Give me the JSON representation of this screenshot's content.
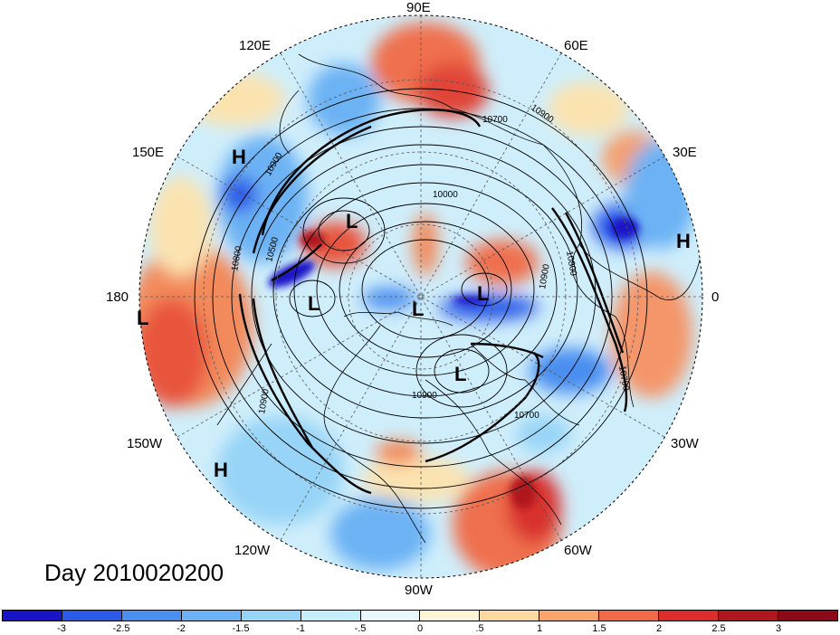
{
  "title": "Day 2010020200",
  "longitude_labels": [
    "90E",
    "60E",
    "30E",
    "0",
    "30W",
    "60W",
    "90W",
    "120W",
    "150W",
    "180",
    "150E",
    "120E"
  ],
  "pressure_centers": [
    {
      "label": "H"
    },
    {
      "label": "H"
    },
    {
      "label": "H"
    },
    {
      "label": "L"
    },
    {
      "label": "L"
    },
    {
      "label": "L"
    },
    {
      "label": "L"
    },
    {
      "label": "L"
    },
    {
      "label": "L"
    }
  ],
  "contour_labels": [
    "10700",
    "10900",
    "10900",
    "10000",
    "10500",
    "10800",
    "10900",
    "10900",
    "10700",
    "10800",
    "10700",
    "10900"
  ],
  "colorbar": {
    "labels": [
      "-3",
      "-2.5",
      "-2",
      "-1.5",
      "-1",
      "-.5",
      "0",
      ".5",
      "1",
      "1.5",
      "2",
      "2.5",
      "3"
    ],
    "colors": [
      "#1a14c8",
      "#2b5ae8",
      "#4a8ef0",
      "#6cb2f4",
      "#97d4f7",
      "#c5eefc",
      "#e8f8fd",
      "#fdf6d6",
      "#fcd9a0",
      "#f8a46c",
      "#f26a4a",
      "#dc2c2c",
      "#b0161e",
      "#8c0a18"
    ]
  }
}
